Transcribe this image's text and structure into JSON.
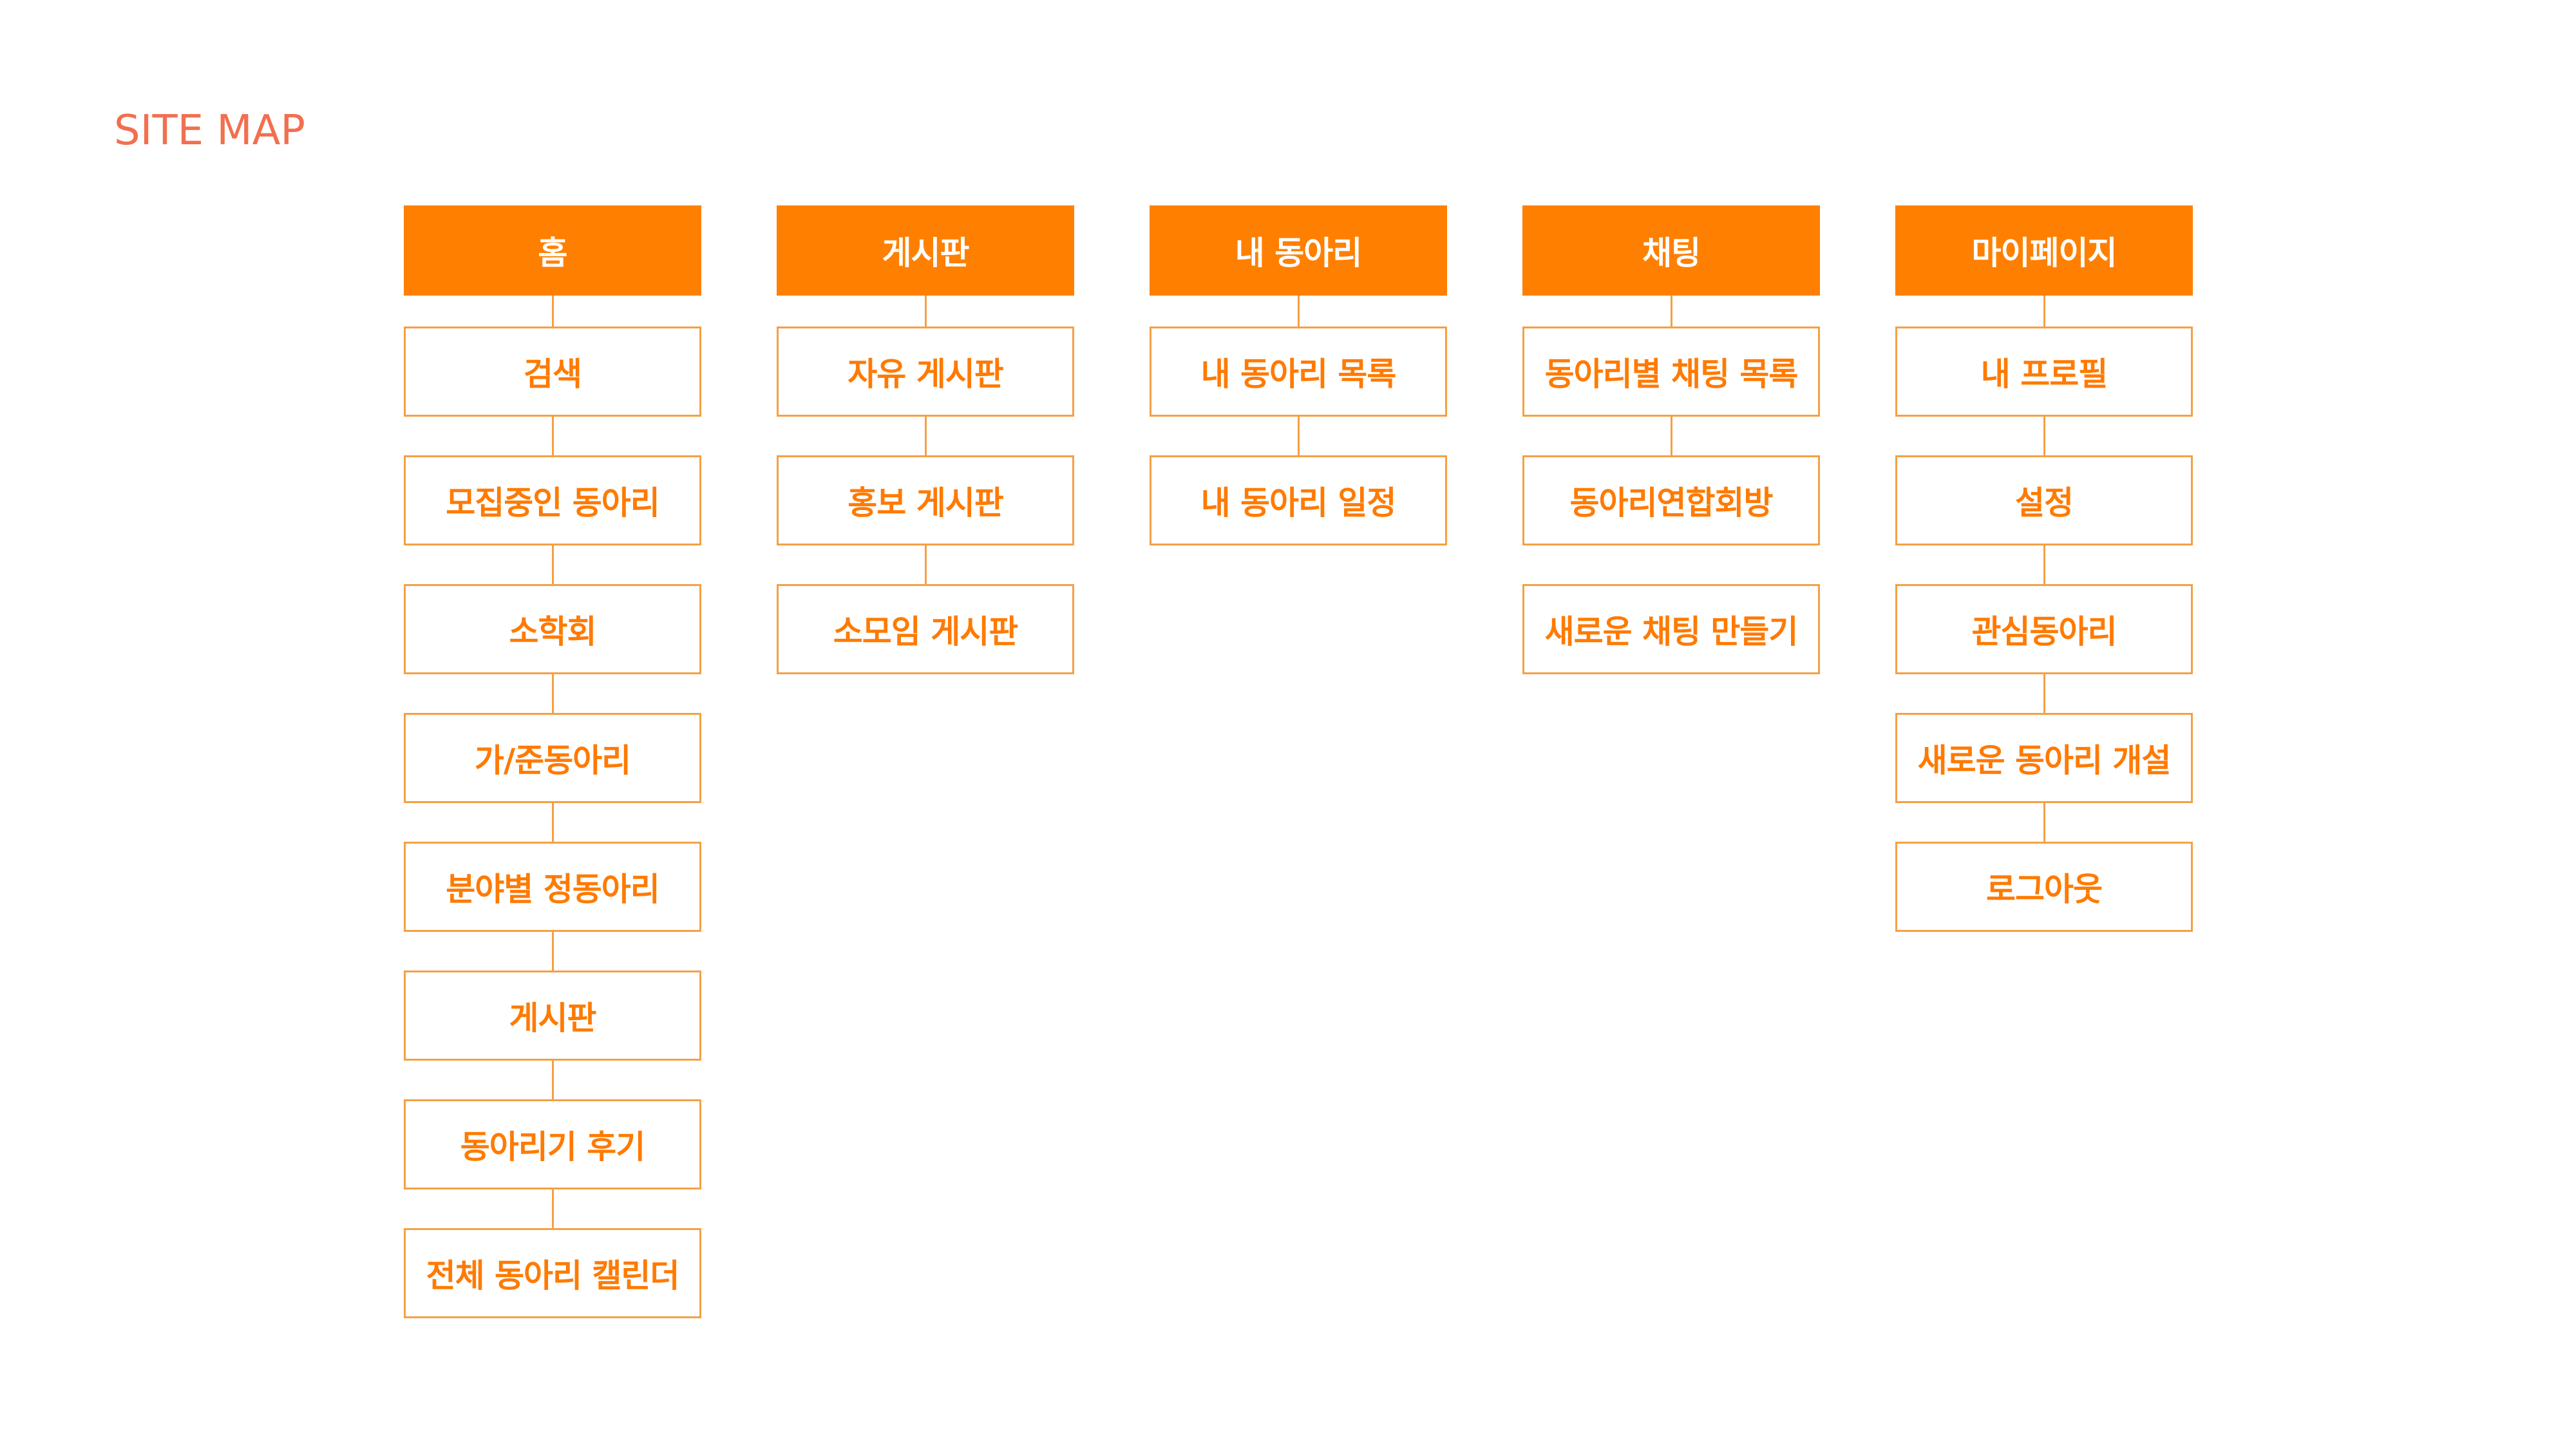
{
  "page": {
    "title": "SITE MAP"
  },
  "colors": {
    "title": "#f26f4f",
    "header_fill": "#ff8000",
    "child_text": "#ff7a00",
    "child_border": "#f5a043",
    "background": "#ffffff"
  },
  "columns": [
    {
      "header": "홈",
      "children": [
        "검색",
        "모집중인 동아리",
        "소학회",
        "가/준동아리",
        "분야별 정동아리",
        "게시판",
        "동아리기 후기",
        "전체 동아리 캘린더"
      ]
    },
    {
      "header": "게시판",
      "children": [
        "자유 게시판",
        "홍보 게시판",
        "소모임 게시판"
      ]
    },
    {
      "header": "내 동아리",
      "children": [
        "내 동아리 목록",
        "내 동아리 일정"
      ]
    },
    {
      "header": "채팅",
      "children": [
        "동아리별 채팅 목록",
        "동아리연합회방",
        "새로운 채팅 만들기"
      ]
    },
    {
      "header": "마이페이지",
      "children": [
        "내 프로필",
        "설정",
        "관심동아리",
        "새로운 동아리 개설",
        "로그아웃"
      ]
    }
  ]
}
